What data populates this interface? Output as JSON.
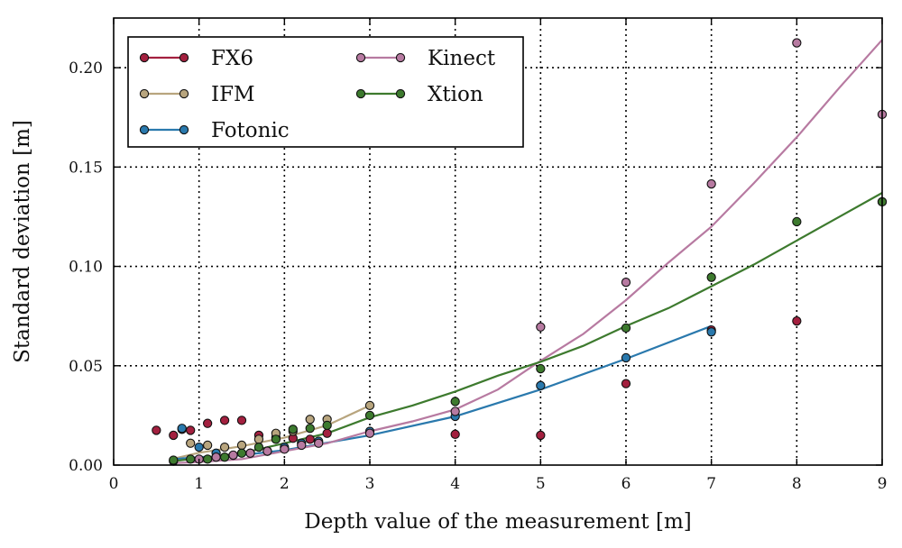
{
  "chart_data": {
    "type": "scatter",
    "xlabel": "Depth value of the measurement [m]",
    "ylabel": "Standard deviation [m]",
    "xlim": [
      0,
      9
    ],
    "ylim": [
      0,
      0.225
    ],
    "xticks": [
      "0",
      "1",
      "2",
      "3",
      "4",
      "5",
      "6",
      "7",
      "8",
      "9"
    ],
    "xtick_values": [
      0,
      1,
      2,
      3,
      4,
      5,
      6,
      7,
      8,
      9
    ],
    "yticks": [
      "0.00",
      "0.05",
      "0.10",
      "0.15",
      "0.20"
    ],
    "ytick_values": [
      0,
      0.05,
      0.1,
      0.15,
      0.2
    ],
    "grid": true,
    "legend": "top-left",
    "series": [
      {
        "name": "FX6",
        "color": "#a3203f",
        "points": [
          [
            0.5,
            0.0175
          ],
          [
            0.7,
            0.015
          ],
          [
            0.8,
            0.018
          ],
          [
            0.9,
            0.0175
          ],
          [
            1.1,
            0.021
          ],
          [
            1.3,
            0.0225
          ],
          [
            1.5,
            0.0225
          ],
          [
            1.7,
            0.015
          ],
          [
            1.9,
            0.014
          ],
          [
            2.1,
            0.0135
          ],
          [
            2.3,
            0.013
          ],
          [
            2.5,
            0.016
          ],
          [
            4,
            0.0155
          ],
          [
            5,
            0.015
          ],
          [
            6,
            0.041
          ],
          [
            7,
            0.068
          ],
          [
            8,
            0.0725
          ],
          [
            9,
            0.1325
          ]
        ],
        "fit": []
      },
      {
        "name": "IFM",
        "color": "#b8a57e",
        "points": [
          [
            0.9,
            0.011
          ],
          [
            1.1,
            0.01
          ],
          [
            1.3,
            0.009
          ],
          [
            1.5,
            0.01
          ],
          [
            1.7,
            0.013
          ],
          [
            1.9,
            0.016
          ],
          [
            2.1,
            0.017
          ],
          [
            2.3,
            0.023
          ],
          [
            2.5,
            0.023
          ],
          [
            3,
            0.03
          ]
        ],
        "fit": [
          [
            0.7,
            0.0032
          ],
          [
            1,
            0.0062
          ],
          [
            1.5,
            0.0095
          ],
          [
            2,
            0.0138
          ],
          [
            2.5,
            0.02
          ],
          [
            3,
            0.03
          ]
        ]
      },
      {
        "name": "Fotonic",
        "color": "#2a79ad",
        "points": [
          [
            0.8,
            0.0185
          ],
          [
            1,
            0.009
          ],
          [
            1.2,
            0.006
          ],
          [
            1.4,
            0.005
          ],
          [
            1.6,
            0.006
          ],
          [
            1.8,
            0.007
          ],
          [
            2,
            0.009
          ],
          [
            2.2,
            0.011
          ],
          [
            2.4,
            0.012
          ],
          [
            3,
            0.017
          ],
          [
            4,
            0.0245
          ],
          [
            5,
            0.04
          ],
          [
            6,
            0.054
          ],
          [
            7,
            0.067
          ]
        ],
        "fit": [
          [
            0.7,
            0.003
          ],
          [
            1,
            0.004
          ],
          [
            1.5,
            0.005
          ],
          [
            2,
            0.0075
          ],
          [
            3,
            0.015
          ],
          [
            4,
            0.0245
          ],
          [
            5,
            0.038
          ],
          [
            6,
            0.0535
          ],
          [
            7,
            0.07
          ]
        ]
      },
      {
        "name": "Kinect",
        "color": "#b77aa1",
        "points": [
          [
            0.7,
            0.002
          ],
          [
            1,
            0.003
          ],
          [
            1.2,
            0.004
          ],
          [
            1.4,
            0.005
          ],
          [
            1.6,
            0.006
          ],
          [
            1.8,
            0.007
          ],
          [
            2,
            0.008
          ],
          [
            2.2,
            0.01
          ],
          [
            2.4,
            0.011
          ],
          [
            3,
            0.016
          ],
          [
            4,
            0.027
          ],
          [
            5,
            0.0695
          ],
          [
            6,
            0.092
          ],
          [
            7,
            0.1415
          ],
          [
            8,
            0.2125
          ],
          [
            9,
            0.1765
          ]
        ],
        "fit": [
          [
            0.7,
            0.001
          ],
          [
            1,
            0.0015
          ],
          [
            1.5,
            0.003
          ],
          [
            2,
            0.007
          ],
          [
            2.5,
            0.011
          ],
          [
            3,
            0.017
          ],
          [
            3.5,
            0.022
          ],
          [
            4,
            0.028
          ],
          [
            4.5,
            0.038
          ],
          [
            5,
            0.0525
          ],
          [
            5.5,
            0.066
          ],
          [
            6,
            0.083
          ],
          [
            6.5,
            0.102
          ],
          [
            7,
            0.12
          ],
          [
            7.5,
            0.142
          ],
          [
            8,
            0.165
          ],
          [
            8.5,
            0.19
          ],
          [
            9,
            0.214
          ]
        ]
      },
      {
        "name": "Xtion",
        "color": "#3d7a2e",
        "points": [
          [
            0.7,
            0.0025
          ],
          [
            0.9,
            0.003
          ],
          [
            1.1,
            0.003
          ],
          [
            1.3,
            0.004
          ],
          [
            1.5,
            0.006
          ],
          [
            1.7,
            0.009
          ],
          [
            1.9,
            0.013
          ],
          [
            2.1,
            0.018
          ],
          [
            2.3,
            0.0185
          ],
          [
            2.5,
            0.02
          ],
          [
            3,
            0.025
          ],
          [
            4,
            0.032
          ],
          [
            5,
            0.0485
          ],
          [
            6,
            0.069
          ],
          [
            7,
            0.0945
          ],
          [
            8,
            0.1225
          ],
          [
            9,
            0.1325
          ]
        ],
        "fit": [
          [
            0.7,
            0.002
          ],
          [
            1,
            0.0035
          ],
          [
            1.5,
            0.006
          ],
          [
            2,
            0.011
          ],
          [
            2.5,
            0.016
          ],
          [
            3,
            0.024
          ],
          [
            3.5,
            0.03
          ],
          [
            4,
            0.037
          ],
          [
            4.5,
            0.045
          ],
          [
            5,
            0.052
          ],
          [
            5.5,
            0.06
          ],
          [
            6,
            0.07
          ],
          [
            6.5,
            0.079
          ],
          [
            7,
            0.09
          ],
          [
            7.5,
            0.101
          ],
          [
            8,
            0.113
          ],
          [
            8.5,
            0.125
          ],
          [
            9,
            0.137
          ]
        ]
      }
    ]
  }
}
